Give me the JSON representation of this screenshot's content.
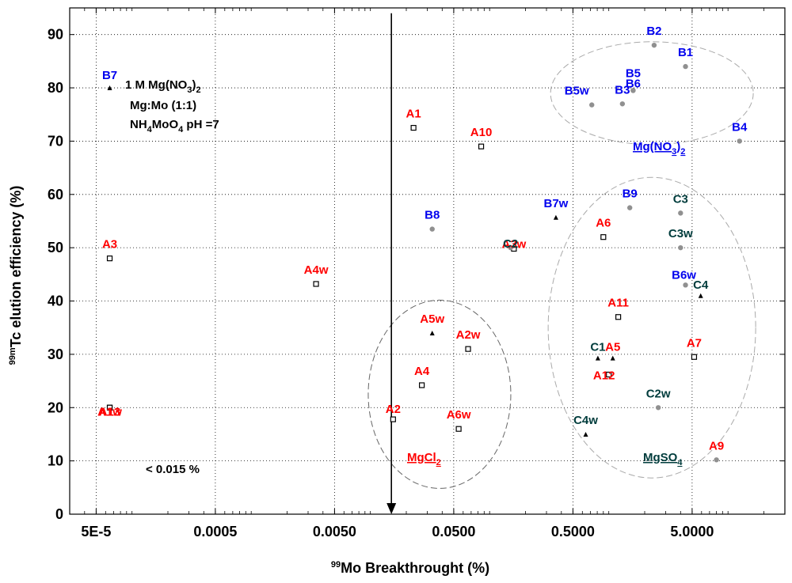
{
  "chart_data": {
    "type": "scatter",
    "xscale": "log",
    "xlim": [
      3e-05,
      30
    ],
    "ylim": [
      0,
      95
    ],
    "xlabel_sup": "99",
    "xlabel": "Mo Breakthrought (%)",
    "ylabel_sup": "99m",
    "ylabel": "Tc elution efficiency (%)",
    "xticks": [
      {
        "value": 5e-05,
        "label": "5E-5"
      },
      {
        "value": 0.0005,
        "label": "0.0005"
      },
      {
        "value": 0.005,
        "label": "0.0050"
      },
      {
        "value": 0.05,
        "label": "0.0500"
      },
      {
        "value": 0.5,
        "label": "0.5000"
      },
      {
        "value": 5,
        "label": "5.0000"
      }
    ],
    "yticks": [
      0,
      10,
      20,
      30,
      40,
      50,
      60,
      70,
      80,
      90
    ],
    "series_colors": {
      "A": "#ff0000",
      "B": "#0000ee",
      "C": "#003c3c"
    },
    "points": [
      {
        "label": "A1",
        "series": "A",
        "marker": "square",
        "x": 0.023,
        "y": 72.5
      },
      {
        "label": "A10",
        "series": "A",
        "marker": "square",
        "x": 0.085,
        "y": 69
      },
      {
        "label": "A3",
        "series": "A",
        "marker": "square",
        "x": 6.5e-05,
        "y": 48
      },
      {
        "label": "A4w",
        "series": "A",
        "marker": "square",
        "x": 0.0035,
        "y": 43.2
      },
      {
        "label": "A3w",
        "series": "A",
        "marker": "square",
        "x": 0.16,
        "y": 49.8
      },
      {
        "label": "A6",
        "series": "A",
        "marker": "square",
        "x": 0.9,
        "y": 52
      },
      {
        "label": "A11",
        "series": "A",
        "marker": "square",
        "x": 1.2,
        "y": 37
      },
      {
        "label": "A5w",
        "series": "A",
        "marker": "triangle",
        "x": 0.033,
        "y": 34
      },
      {
        "label": "A2w",
        "series": "A",
        "marker": "square",
        "x": 0.066,
        "y": 31
      },
      {
        "label": "A4",
        "series": "A",
        "marker": "square",
        "x": 0.027,
        "y": 24.2
      },
      {
        "label": "A6w",
        "series": "A",
        "marker": "square",
        "x": 0.055,
        "y": 16
      },
      {
        "label": "A2",
        "series": "A",
        "marker": "square",
        "x": 0.0155,
        "y": 17.8
      },
      {
        "label": "A13",
        "series": "A",
        "marker": "square",
        "x": 6.5e-05,
        "y": 20
      },
      {
        "label": "A1w",
        "series": "A",
        "marker": "square",
        "x": 6.5e-05,
        "y": 20
      },
      {
        "label": "A5",
        "series": "A",
        "marker": "triangle",
        "x": 1.08,
        "y": 29.3
      },
      {
        "label": "A12",
        "series": "A",
        "marker": "square",
        "x": 1.0,
        "y": 26.2
      },
      {
        "label": "A7",
        "series": "A",
        "marker": "square",
        "x": 5.2,
        "y": 29.5
      },
      {
        "label": "A9",
        "series": "A",
        "marker": "circle",
        "x": 8.0,
        "y": 10.2
      },
      {
        "label": "B7",
        "series": "B",
        "marker": "triangle",
        "x": 6.5e-05,
        "y": 80
      },
      {
        "label": "B2",
        "series": "B",
        "marker": "circle",
        "x": 2.4,
        "y": 88
      },
      {
        "label": "B1",
        "series": "B",
        "marker": "circle",
        "x": 4.4,
        "y": 84
      },
      {
        "label": "B5",
        "series": "B",
        "marker": "circle",
        "x": 1.6,
        "y": 79.5
      },
      {
        "label": "B6",
        "series": "B",
        "marker": "circle",
        "x": 1.6,
        "y": 79.5
      },
      {
        "label": "B5w",
        "series": "B",
        "marker": "circle",
        "x": 0.72,
        "y": 76.8
      },
      {
        "label": "B3",
        "series": "B",
        "marker": "circle",
        "x": 1.3,
        "y": 77
      },
      {
        "label": "B4",
        "series": "B",
        "marker": "circle",
        "x": 12.5,
        "y": 70
      },
      {
        "label": "B9",
        "series": "B",
        "marker": "circle",
        "x": 1.5,
        "y": 57.5
      },
      {
        "label": "B8",
        "series": "B",
        "marker": "circle",
        "x": 0.033,
        "y": 53.5
      },
      {
        "label": "B7w",
        "series": "B",
        "marker": "triangle",
        "x": 0.36,
        "y": 55.7
      },
      {
        "label": "B6w",
        "series": "B",
        "marker": "circle",
        "x": 4.4,
        "y": 43
      },
      {
        "label": "C2",
        "series": "C",
        "marker": "circle",
        "x": 0.15,
        "y": 50
      },
      {
        "label": "C3",
        "series": "C",
        "marker": "circle",
        "x": 4.0,
        "y": 56.5
      },
      {
        "label": "C3w",
        "series": "C",
        "marker": "circle",
        "x": 4.0,
        "y": 50
      },
      {
        "label": "C4",
        "series": "C",
        "marker": "triangle",
        "x": 5.9,
        "y": 41
      },
      {
        "label": "C1",
        "series": "C",
        "marker": "triangle",
        "x": 0.81,
        "y": 29.3
      },
      {
        "label": "C2w",
        "series": "C",
        "marker": "circle",
        "x": 2.6,
        "y": 20
      },
      {
        "label": "C4w",
        "series": "C",
        "marker": "triangle",
        "x": 0.64,
        "y": 15
      }
    ],
    "arrow": {
      "x": 0.015,
      "y_from": 94,
      "y_to": 0
    },
    "region_labels": [
      {
        "text": "Mg(NO",
        "sub": "3",
        "tail": ")",
        "sub2": "2",
        "color": "#0000ee"
      },
      {
        "text": "MgCl",
        "sub": "2",
        "tail": "",
        "sub2": "",
        "color": "#ff0000"
      },
      {
        "text": "MgSO",
        "sub": "4",
        "tail": "",
        "sub2": "",
        "color": "#003c3c"
      }
    ],
    "annotations": {
      "line1_a": "1 M Mg(NO",
      "line1_sub1": "3",
      "line1_b": ")",
      "line1_sub2": "2",
      "line2": "Mg:Mo  (1:1)",
      "line3_a": "NH",
      "line3_sub1": "4",
      "line3_b": "MoO",
      "line3_sub2": "4",
      "line3_c": " pH =7",
      "threshold": "< 0.015 %"
    }
  }
}
